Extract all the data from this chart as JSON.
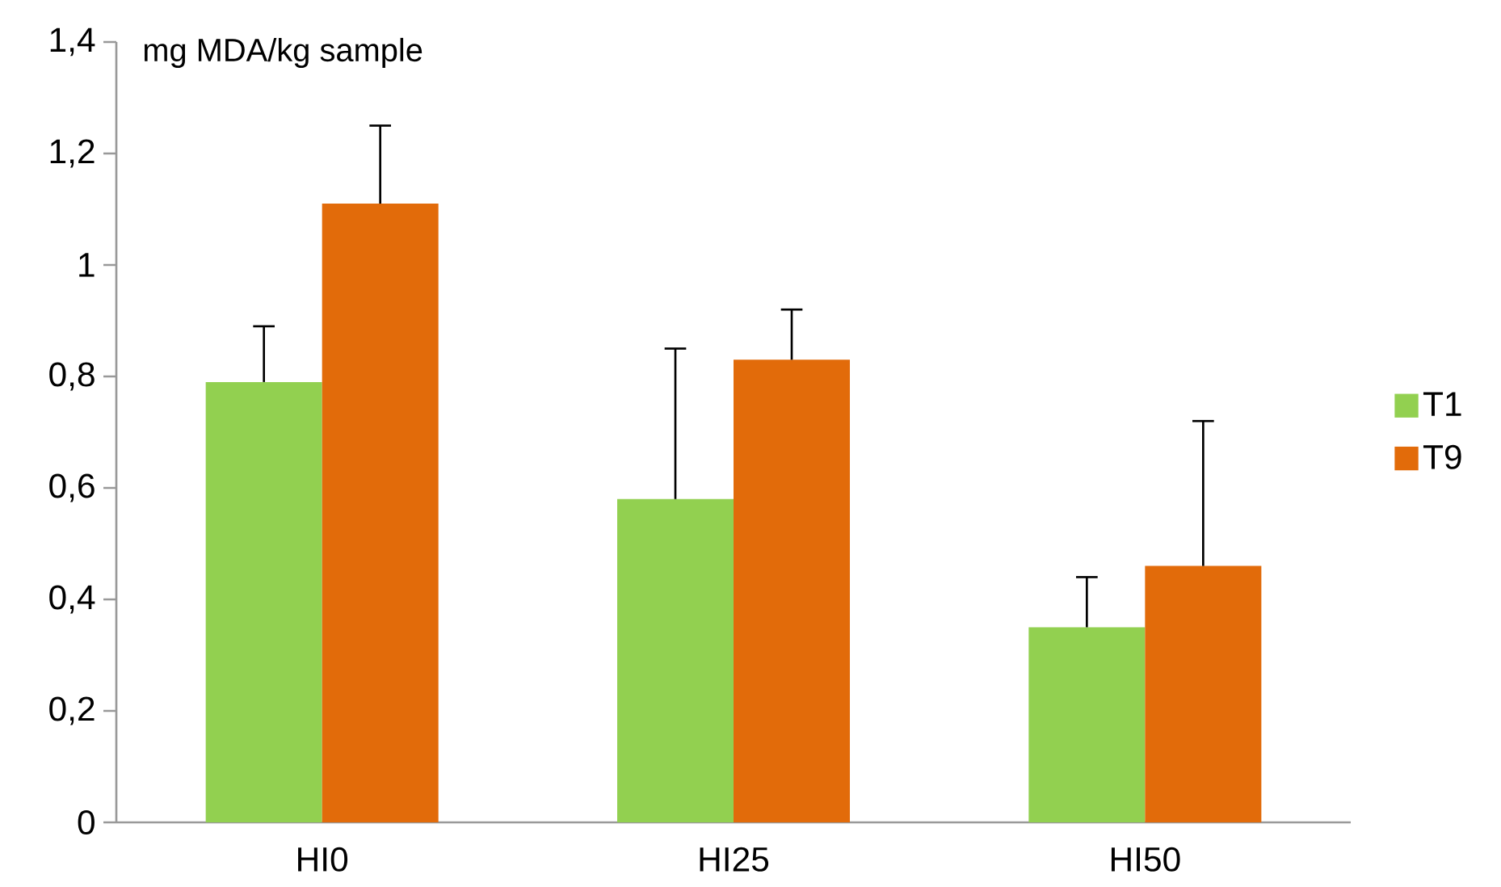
{
  "chart_data": {
    "type": "bar",
    "ylabel": "mg MDA/kg sample",
    "categories": [
      "HI0",
      "HI25",
      "HI50"
    ],
    "series": [
      {
        "name": "T1",
        "color": "#92d050",
        "values": [
          0.79,
          0.58,
          0.35
        ],
        "errors": [
          [
            0.79,
            0.89
          ],
          [
            0.58,
            0.85
          ],
          [
            0.35,
            0.44
          ]
        ]
      },
      {
        "name": "T9",
        "color": "#e26b0a",
        "values": [
          1.11,
          0.83,
          0.46
        ],
        "errors": [
          [
            1.11,
            1.25
          ],
          [
            0.83,
            0.92
          ],
          [
            0.46,
            0.72
          ]
        ]
      }
    ],
    "ylim": [
      0,
      1.4
    ],
    "yticks": [
      {
        "value": 0,
        "label": "0"
      },
      {
        "value": 0.2,
        "label": "0,2"
      },
      {
        "value": 0.4,
        "label": "0,4"
      },
      {
        "value": 0.6,
        "label": "0,6"
      },
      {
        "value": 0.8,
        "label": "0,8"
      },
      {
        "value": 1,
        "label": "1"
      },
      {
        "value": 1.2,
        "label": "1,2"
      },
      {
        "value": 1.4,
        "label": "1,4"
      }
    ],
    "grid": false,
    "legend": "right"
  }
}
